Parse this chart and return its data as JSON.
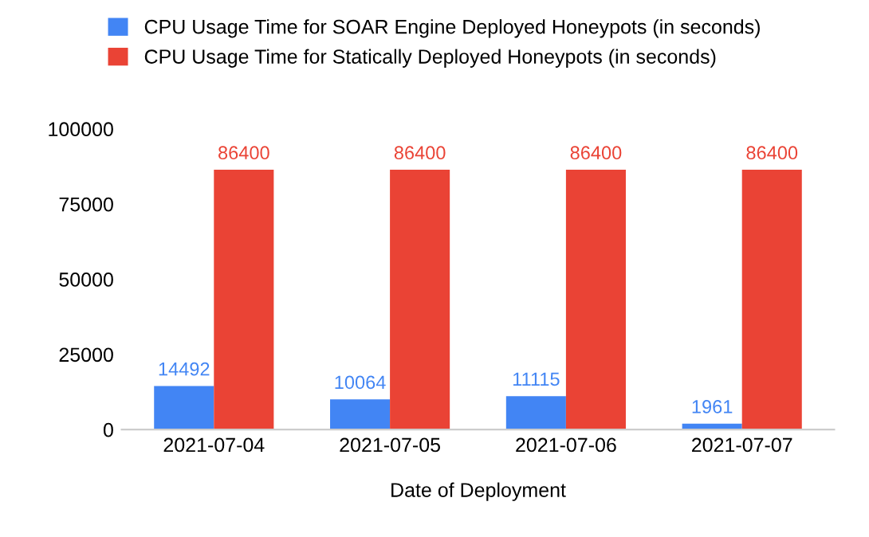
{
  "chart_data": {
    "type": "bar",
    "xlabel": "Date of Deployment",
    "categories": [
      "2021-07-04",
      "2021-07-05",
      "2021-07-06",
      "2021-07-07"
    ],
    "series": [
      {
        "name": "CPU Usage Time for SOAR Engine Deployed Honeypots (in seconds)",
        "color": "#4285f4",
        "values": [
          14492,
          10064,
          11115,
          1961
        ]
      },
      {
        "name": "CPU Usage Time for Statically Deployed Honeypots (in seconds)",
        "color": "#ea4335",
        "values": [
          86400,
          86400,
          86400,
          86400
        ]
      }
    ],
    "ylim": [
      0,
      100000
    ],
    "yticks": [
      0,
      25000,
      50000,
      75000,
      100000
    ],
    "grid": false,
    "legend": "top",
    "data_labels": true
  }
}
